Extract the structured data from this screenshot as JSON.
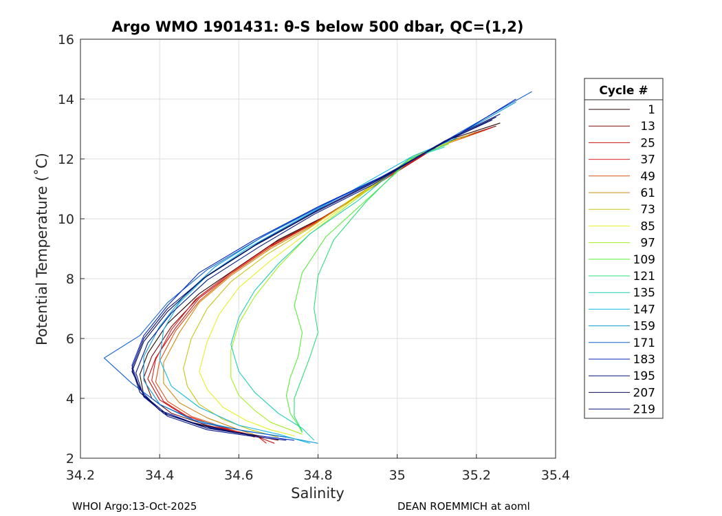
{
  "chart_data": {
    "type": "line",
    "title": "Argo WMO 1901431: θ-S below 500 dbar,  QC=(1,2)",
    "xlabel": "Salinity",
    "ylabel": "Potential Temperature (˚C)",
    "xlim": [
      34.2,
      35.4
    ],
    "ylim": [
      2,
      16
    ],
    "xticks": [
      34.2,
      34.4,
      34.6,
      34.8,
      35,
      35.2,
      35.4
    ],
    "xtick_labels": [
      "34.2",
      "34.4",
      "34.6",
      "34.8",
      "35",
      "35.2",
      "35.4"
    ],
    "yticks": [
      2,
      4,
      6,
      8,
      10,
      12,
      14,
      16
    ],
    "ytick_labels": [
      "2",
      "4",
      "6",
      "8",
      "10",
      "12",
      "14",
      "16"
    ],
    "grid": true,
    "legend_title": "Cycle #",
    "legend_position": "outside-right",
    "series": [
      {
        "name": "1",
        "color": "#2a0505",
        "x": [
          35.26,
          35.12,
          34.95,
          34.82,
          34.7,
          34.6,
          34.5,
          34.42,
          34.37,
          34.35,
          34.36,
          34.4,
          34.48,
          34.58,
          34.66
        ],
        "y": [
          13.2,
          12.6,
          11.2,
          10.1,
          9.3,
          8.4,
          7.5,
          6.5,
          5.5,
          4.8,
          4.1,
          3.6,
          3.2,
          2.9,
          2.7
        ]
      },
      {
        "name": "13",
        "color": "#7a0a0a",
        "x": [
          35.25,
          35.11,
          34.94,
          34.81,
          34.69,
          34.59,
          34.5,
          34.43,
          34.38,
          34.36,
          34.38,
          34.43,
          34.52,
          34.62,
          34.7
        ],
        "y": [
          13.1,
          12.5,
          11.1,
          10.0,
          9.2,
          8.3,
          7.4,
          6.4,
          5.4,
          4.7,
          4.0,
          3.5,
          3.1,
          2.8,
          2.6
        ]
      },
      {
        "name": "25",
        "color": "#c41010",
        "x": [
          35.24,
          35.1,
          34.93,
          34.8,
          34.69,
          34.59,
          34.5,
          34.44,
          34.39,
          34.37,
          34.4,
          34.46,
          34.55,
          34.64,
          34.69
        ],
        "y": [
          13.05,
          12.4,
          11.0,
          9.95,
          9.15,
          8.25,
          7.35,
          6.35,
          5.35,
          4.65,
          3.95,
          3.45,
          3.05,
          2.75,
          2.5
        ]
      },
      {
        "name": "37",
        "color": "#e02020",
        "x": [
          35.23,
          35.09,
          34.92,
          34.8,
          34.68,
          34.58,
          34.49,
          34.43,
          34.39,
          34.38,
          34.41,
          34.47,
          34.56,
          34.65,
          34.67
        ],
        "y": [
          13.0,
          12.35,
          10.95,
          9.9,
          9.1,
          8.2,
          7.3,
          6.3,
          5.3,
          4.6,
          3.9,
          3.4,
          3.0,
          2.7,
          2.5
        ]
      },
      {
        "name": "49",
        "color": "#e05010",
        "x": [
          35.22,
          35.08,
          34.92,
          34.79,
          34.68,
          34.58,
          34.5,
          34.44,
          34.4,
          34.39,
          34.42,
          34.48,
          34.57,
          34.64
        ],
        "y": [
          12.95,
          12.3,
          10.9,
          9.85,
          9.05,
          8.15,
          7.25,
          6.25,
          5.25,
          4.55,
          3.9,
          3.4,
          3.0,
          2.7
        ]
      },
      {
        "name": "61",
        "color": "#d08a10",
        "x": [
          35.2,
          35.07,
          34.91,
          34.79,
          34.68,
          34.58,
          34.5,
          34.45,
          34.41,
          34.41,
          34.45,
          34.52,
          34.6,
          34.66
        ],
        "y": [
          12.9,
          12.25,
          10.85,
          9.8,
          9.0,
          8.1,
          7.2,
          6.2,
          5.2,
          4.5,
          3.85,
          3.35,
          2.95,
          2.7
        ]
      },
      {
        "name": "73",
        "color": "#c8c410",
        "x": [
          35.18,
          35.06,
          34.9,
          34.78,
          34.67,
          34.58,
          34.52,
          34.48,
          34.46,
          34.47,
          34.5,
          34.56,
          34.63,
          34.7
        ],
        "y": [
          12.8,
          12.2,
          10.8,
          9.7,
          8.8,
          7.9,
          7.0,
          6.0,
          5.0,
          4.4,
          3.8,
          3.3,
          2.95,
          2.7
        ]
      },
      {
        "name": "85",
        "color": "#e8f020",
        "x": [
          35.16,
          35.05,
          34.9,
          34.78,
          34.68,
          34.6,
          34.55,
          34.52,
          34.5,
          34.52,
          34.56,
          34.62,
          34.68,
          34.74
        ],
        "y": [
          12.7,
          12.15,
          10.75,
          9.6,
          8.6,
          7.7,
          6.8,
          5.9,
          4.9,
          4.3,
          3.7,
          3.25,
          2.95,
          2.75
        ]
      },
      {
        "name": "97",
        "color": "#a6f020",
        "x": [
          35.14,
          35.04,
          34.9,
          34.78,
          34.7,
          34.64,
          34.6,
          34.58,
          34.58,
          34.6,
          34.64,
          34.68,
          34.73,
          34.76
        ],
        "y": [
          12.6,
          12.1,
          10.7,
          9.5,
          8.4,
          7.4,
          6.5,
          5.6,
          4.7,
          4.1,
          3.6,
          3.2,
          2.95,
          2.8
        ]
      },
      {
        "name": "109",
        "color": "#58ee38",
        "x": [
          35.13,
          35.04,
          34.92,
          34.82,
          34.76,
          34.74,
          34.76,
          34.75,
          34.73,
          34.72,
          34.73,
          34.75,
          34.76
        ],
        "y": [
          12.5,
          12.05,
          10.6,
          9.4,
          8.2,
          7.1,
          6.2,
          5.4,
          4.7,
          4.1,
          3.5,
          3.1,
          2.85
        ]
      },
      {
        "name": "121",
        "color": "#2ce07a",
        "x": [
          35.12,
          35.03,
          34.92,
          34.84,
          34.8,
          34.79,
          34.8,
          34.78,
          34.76,
          34.74,
          34.74,
          34.76
        ],
        "y": [
          12.45,
          12.0,
          10.55,
          9.3,
          8.1,
          7.0,
          6.2,
          5.4,
          4.7,
          4.0,
          3.4,
          2.9
        ]
      },
      {
        "name": "135",
        "color": "#1ad0b4",
        "x": [
          35.12,
          35.03,
          34.9,
          34.78,
          34.7,
          34.64,
          34.6,
          34.58,
          34.6,
          34.64,
          34.7,
          34.76,
          34.79
        ],
        "y": [
          12.4,
          12.0,
          10.6,
          9.5,
          8.5,
          7.6,
          6.7,
          5.8,
          4.9,
          4.2,
          3.5,
          3.0,
          2.6
        ]
      },
      {
        "name": "147",
        "color": "#12b8e8",
        "x": [
          35.15,
          35.04,
          34.88,
          34.74,
          34.62,
          34.52,
          34.45,
          34.41,
          34.4,
          34.43,
          34.5,
          34.6,
          34.7,
          34.78
        ],
        "y": [
          12.7,
          12.1,
          10.9,
          9.9,
          9.0,
          8.1,
          7.2,
          6.3,
          5.3,
          4.4,
          3.7,
          3.1,
          2.8,
          2.5
        ]
      },
      {
        "name": "159",
        "color": "#0c9ad8",
        "x": [
          35.3,
          35.14,
          34.96,
          34.8,
          34.66,
          34.54,
          34.46,
          34.4,
          34.36,
          34.36,
          34.4,
          34.48,
          34.6,
          34.72,
          34.8
        ],
        "y": [
          13.9,
          12.7,
          11.4,
          10.4,
          9.4,
          8.4,
          7.4,
          6.4,
          5.4,
          4.6,
          3.8,
          3.3,
          2.95,
          2.7,
          2.5
        ]
      },
      {
        "name": "171",
        "color": "#0a62d6",
        "x": [
          35.34,
          35.16,
          34.98,
          34.82,
          34.66,
          34.52,
          34.42,
          34.35,
          34.26,
          34.33,
          34.4,
          34.5,
          34.62,
          34.72
        ],
        "y": [
          14.25,
          12.9,
          11.5,
          10.5,
          9.4,
          8.3,
          7.2,
          6.1,
          5.35,
          4.5,
          3.8,
          3.2,
          2.9,
          2.7
        ]
      },
      {
        "name": "183",
        "color": "#0422c0",
        "x": [
          35.3,
          35.14,
          34.96,
          34.8,
          34.64,
          34.5,
          34.42,
          34.36,
          34.33,
          34.35,
          34.4,
          34.5,
          34.62,
          34.74
        ],
        "y": [
          14.0,
          12.7,
          11.4,
          10.4,
          9.3,
          8.2,
          7.1,
          6.1,
          5.1,
          4.3,
          3.6,
          3.1,
          2.8,
          2.6
        ]
      },
      {
        "name": "195",
        "color": "#04127a",
        "x": [
          35.26,
          35.12,
          34.95,
          34.8,
          34.65,
          34.52,
          34.42,
          34.36,
          34.33,
          34.35,
          34.41,
          34.52,
          34.64
        ],
        "y": [
          13.5,
          12.6,
          11.3,
          10.3,
          9.2,
          8.1,
          7.0,
          6.0,
          5.0,
          4.2,
          3.5,
          3.0,
          2.75
        ]
      },
      {
        "name": "207",
        "color": "#060a55",
        "x": [
          35.25,
          35.11,
          34.94,
          34.79,
          34.64,
          34.51,
          34.42,
          34.36,
          34.33,
          34.36,
          34.42,
          34.53,
          34.65
        ],
        "y": [
          13.4,
          12.5,
          11.2,
          10.2,
          9.1,
          8.0,
          6.9,
          5.9,
          4.9,
          4.1,
          3.45,
          3.0,
          2.75
        ]
      },
      {
        "name": "219",
        "color": "#0a1a8a",
        "x": [
          35.24,
          35.1,
          34.94,
          34.79,
          34.65,
          34.52,
          34.43,
          34.37,
          34.34,
          34.36,
          34.42,
          34.52,
          34.64,
          34.72
        ],
        "y": [
          13.3,
          12.45,
          11.15,
          10.15,
          9.05,
          7.95,
          6.85,
          5.85,
          4.85,
          4.05,
          3.4,
          2.95,
          2.72,
          2.6
        ]
      }
    ]
  },
  "footer": {
    "left": "WHOI Argo:13-Oct-2025",
    "right": "DEAN ROEMMICH at aoml"
  }
}
